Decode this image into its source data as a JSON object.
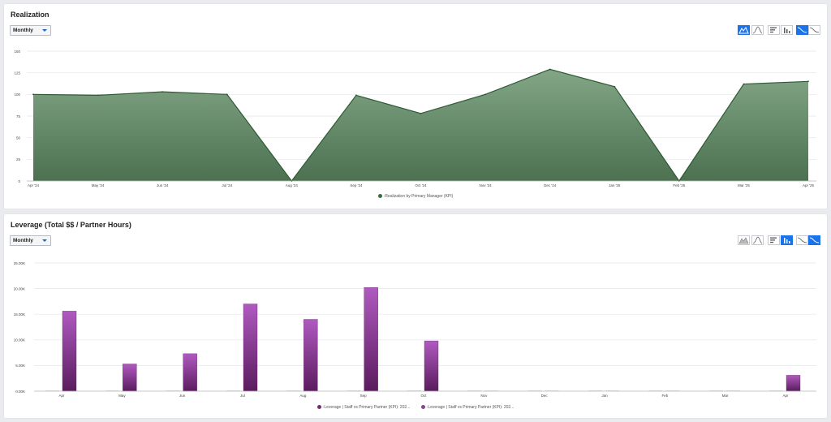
{
  "chart_data": [
    {
      "type": "area",
      "title": "Realization",
      "period": "Monthly",
      "categories": [
        "Apr '24",
        "May '24",
        "Jun '24",
        "Jul '24",
        "Aug '24",
        "Sep '24",
        "Oct '24",
        "Nov '24",
        "Dec '24",
        "Jan '25",
        "Feb '25",
        "Mar '25",
        "Apr '25"
      ],
      "series": [
        {
          "name": "-Realization by Primary Manager (KPI)",
          "values": [
            100,
            99,
            103,
            100,
            0,
            99,
            78,
            100,
            129,
            109,
            0,
            112,
            115
          ]
        }
      ],
      "ylim": [
        0,
        150
      ],
      "yticks": [
        0,
        25,
        50,
        75,
        100,
        125,
        150
      ],
      "ytick_labels": [
        "0",
        "25",
        "50",
        "75",
        "100",
        "125",
        "150"
      ],
      "grid": true,
      "legend": "bottom-center",
      "colors": {
        "fill": "#5e8762",
        "line": "#2e5a34",
        "legend_dot": "#3d6b40"
      }
    },
    {
      "type": "bar",
      "title": "Leverage (Total $$ / Partner Hours)",
      "period": "Monthly",
      "categories": [
        "Apr",
        "May",
        "Jun",
        "Jul",
        "Aug",
        "Sep",
        "Oct",
        "Nov",
        "Dec",
        "Jan",
        "Feb",
        "Mar",
        "Apr"
      ],
      "series": [
        {
          "name": "-Leverage | Staff vs Primary Partner (KPI): 202...",
          "values": [
            0,
            0,
            0,
            0,
            0,
            0,
            0,
            0,
            0,
            0,
            0,
            0,
            0
          ]
        },
        {
          "name": "-Leverage | Staff vs Primary Partner (KPI): 202...",
          "values": [
            15600,
            5300,
            7300,
            17000,
            14000,
            20200,
            9800,
            0,
            0,
            0,
            0,
            0,
            3100
          ]
        }
      ],
      "ylim": [
        0,
        25000
      ],
      "yticks": [
        0,
        5000,
        10000,
        15000,
        20000,
        25000
      ],
      "ytick_labels": [
        "0.00K",
        "5.00K",
        "10.00K",
        "15.00K",
        "20.00K",
        "25.00K"
      ],
      "grid": true,
      "legend": "bottom-center",
      "colors": {
        "bar_top": "#b05ac0",
        "bar_bottom": "#5a1c5e",
        "legend_dot_1": "#7a2a6e",
        "legend_dot_2": "#8e3f96"
      }
    }
  ]
}
